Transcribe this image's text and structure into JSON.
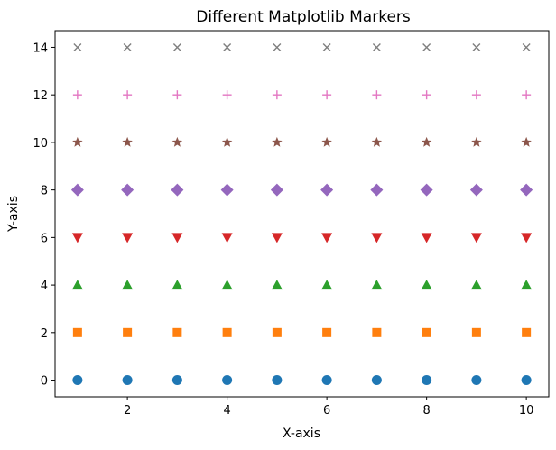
{
  "chart_data": {
    "type": "scatter",
    "title": "Different Matplotlib Markers",
    "xlabel": "X-axis",
    "ylabel": "Y-axis",
    "xlim": [
      0.55,
      10.45
    ],
    "ylim": [
      -0.7,
      14.7
    ],
    "x_ticks": [
      2,
      4,
      6,
      8,
      10
    ],
    "y_ticks": [
      0,
      2,
      4,
      6,
      8,
      10,
      12,
      14
    ],
    "grid": false,
    "x": [
      1,
      2,
      3,
      4,
      5,
      6,
      7,
      8,
      9,
      10
    ],
    "series": [
      {
        "marker": "circle",
        "color": "#1f77b4",
        "y": [
          0,
          0,
          0,
          0,
          0,
          0,
          0,
          0,
          0,
          0
        ]
      },
      {
        "marker": "square",
        "color": "#ff7f0e",
        "y": [
          2,
          2,
          2,
          2,
          2,
          2,
          2,
          2,
          2,
          2
        ]
      },
      {
        "marker": "triangle-up",
        "color": "#2ca02c",
        "y": [
          4,
          4,
          4,
          4,
          4,
          4,
          4,
          4,
          4,
          4
        ]
      },
      {
        "marker": "triangle-down",
        "color": "#d62728",
        "y": [
          6,
          6,
          6,
          6,
          6,
          6,
          6,
          6,
          6,
          6
        ]
      },
      {
        "marker": "diamond",
        "color": "#9467bd",
        "y": [
          8,
          8,
          8,
          8,
          8,
          8,
          8,
          8,
          8,
          8
        ]
      },
      {
        "marker": "star",
        "color": "#8c564b",
        "y": [
          10,
          10,
          10,
          10,
          10,
          10,
          10,
          10,
          10,
          10
        ]
      },
      {
        "marker": "plus",
        "color": "#e377c2",
        "y": [
          12,
          12,
          12,
          12,
          12,
          12,
          12,
          12,
          12,
          12
        ]
      },
      {
        "marker": "x",
        "color": "#7f7f7f",
        "y": [
          14,
          14,
          14,
          14,
          14,
          14,
          14,
          14,
          14,
          14
        ]
      }
    ]
  }
}
